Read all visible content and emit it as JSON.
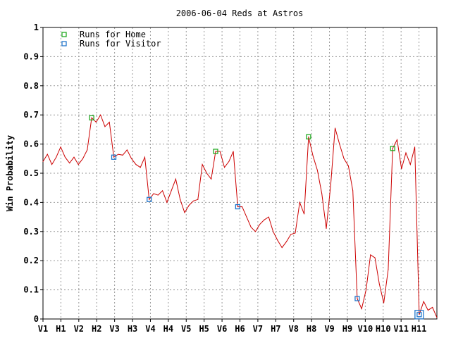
{
  "chart_data": {
    "type": "line",
    "title": "2006-06-04 Reds at Astros",
    "ylabel": "Win Probability",
    "xlabel": "",
    "ylim": [
      0,
      1
    ],
    "yticks": [
      "0",
      "0.1",
      "0.2",
      "0.3",
      "0.4",
      "0.5",
      "0.6",
      "0.7",
      "0.8",
      "0.9",
      "1"
    ],
    "xticks": [
      "V1",
      "H1",
      "V2",
      "H2",
      "V3",
      "H3",
      "V4",
      "H4",
      "V5",
      "H5",
      "V6",
      "H6",
      "V7",
      "H7",
      "V8",
      "H8",
      "V9",
      "H9",
      "V10",
      "H10",
      "V11",
      "H11"
    ],
    "grid": true,
    "legend_position": "top-left",
    "line_color": "#cc0000",
    "series": [
      {
        "values": [
          0.54,
          0.565,
          0.53,
          0.555,
          0.59,
          0.555,
          0.535,
          0.555,
          0.53,
          0.55,
          0.58,
          0.69,
          0.675,
          0.7,
          0.66,
          0.675,
          0.555,
          0.565,
          0.562,
          0.58,
          0.55,
          0.53,
          0.52,
          0.555,
          0.41,
          0.43,
          0.425,
          0.44,
          0.4,
          0.44,
          0.48,
          0.41,
          0.365,
          0.39,
          0.405,
          0.41,
          0.53,
          0.5,
          0.48,
          0.575,
          0.575,
          0.52,
          0.54,
          0.575,
          0.385,
          0.385,
          0.35,
          0.315,
          0.3,
          0.325,
          0.34,
          0.35,
          0.3,
          0.27,
          0.245,
          0.265,
          0.29,
          0.295,
          0.4,
          0.36,
          0.625,
          0.56,
          0.51,
          0.43,
          0.31,
          0.46,
          0.655,
          0.6,
          0.55,
          0.525,
          0.44,
          0.07,
          0.035,
          0.1,
          0.22,
          0.21,
          0.12,
          0.055,
          0.17,
          0.585,
          0.615,
          0.515,
          0.57,
          0.53,
          0.59,
          0.015,
          0.06,
          0.03,
          0.04,
          0.005
        ]
      }
    ],
    "markers": [
      {
        "name": "Runs for Home",
        "color": "#22aa22",
        "points": [
          11,
          39,
          60,
          79
        ]
      },
      {
        "name": "Runs for Visitor",
        "color": "#2277cc",
        "points": [
          16,
          24,
          44,
          71,
          85
        ]
      }
    ],
    "final_marker_index": 85
  }
}
